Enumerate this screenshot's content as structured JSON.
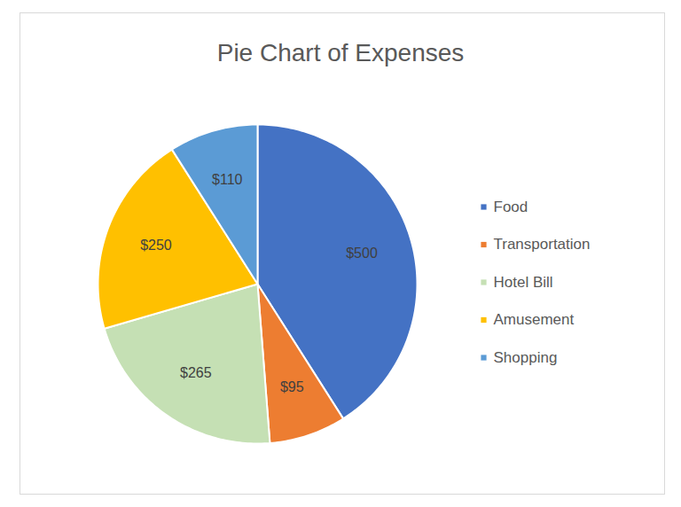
{
  "chart_data": {
    "type": "pie",
    "title": "Pie Chart of Expenses",
    "categories": [
      "Food",
      "Transportation",
      "Hotel Bill",
      "Amusement",
      "Shopping"
    ],
    "values": [
      500,
      95,
      265,
      250,
      110
    ],
    "value_labels": [
      "$500",
      "$95",
      "$265",
      "$250",
      "$110"
    ],
    "colors": [
      "#4472c4",
      "#ed7d31",
      "#c5e0b4",
      "#ffc000",
      "#5b9bd5"
    ],
    "data_labels": true,
    "legend": "right"
  }
}
